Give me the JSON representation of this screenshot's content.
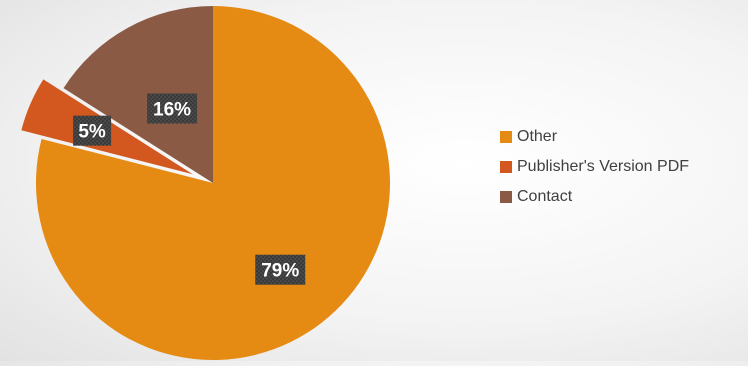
{
  "chart_data": {
    "type": "pie",
    "title": "",
    "slices": [
      {
        "label": "Other",
        "value": 79,
        "display": "79%",
        "color": "#E58A13"
      },
      {
        "label": "Publisher's Version PDF",
        "value": 5,
        "display": "5%",
        "color": "#D2581F"
      },
      {
        "label": "Contact",
        "value": 16,
        "display": "16%",
        "color": "#8A5A44"
      }
    ],
    "exploded": [
      "Publisher's Version PDF"
    ],
    "legend_position": "right"
  }
}
